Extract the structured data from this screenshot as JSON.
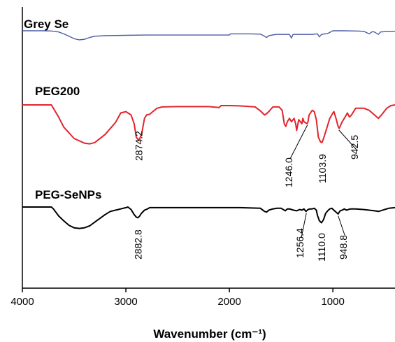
{
  "chart_data": {
    "type": "line",
    "xlabel": "Wavenumber (cm⁻¹)",
    "xlim": [
      4000,
      400
    ],
    "x_ticks": [
      4000,
      3000,
      2000,
      1000
    ],
    "x_tick_labels": [
      "4000",
      "3000",
      "2000",
      "1000"
    ],
    "colors": {
      "Grey Se": "#4a5ca6",
      "PEG200": "#e3242b",
      "PEG-SeNPs": "#000000"
    },
    "series": [
      {
        "name": "Grey Se",
        "offset": 0.0,
        "points": [
          [
            4000,
            0.0
          ],
          [
            3800,
            0.0
          ],
          [
            3720,
            0.3
          ],
          [
            3650,
            2.0
          ],
          [
            3600,
            5.0
          ],
          [
            3550,
            9.0
          ],
          [
            3500,
            13.0
          ],
          [
            3450,
            15.0
          ],
          [
            3400,
            14.0
          ],
          [
            3350,
            11.0
          ],
          [
            3300,
            9.0
          ],
          [
            3200,
            8.0
          ],
          [
            3000,
            7.5
          ],
          [
            2800,
            7.0
          ],
          [
            2500,
            7.0
          ],
          [
            2000,
            7.0
          ],
          [
            1990,
            5.0
          ],
          [
            1800,
            5.0
          ],
          [
            1700,
            5.5
          ],
          [
            1660,
            9.0
          ],
          [
            1640,
            11.0
          ],
          [
            1620,
            8.0
          ],
          [
            1550,
            6.0
          ],
          [
            1420,
            6.0
          ],
          [
            1400,
            12.0
          ],
          [
            1385,
            6.0
          ],
          [
            1200,
            6.0
          ],
          [
            1150,
            5.0
          ],
          [
            1130,
            10.0
          ],
          [
            1110,
            6.0
          ],
          [
            1050,
            4.5
          ],
          [
            1000,
            0.0
          ],
          [
            900,
            0.0
          ],
          [
            750,
            0.5
          ],
          [
            700,
            1.0
          ],
          [
            650,
            5.0
          ],
          [
            620,
            1.5
          ],
          [
            600,
            2.0
          ],
          [
            560,
            6.0
          ],
          [
            540,
            2.0
          ],
          [
            500,
            1.5
          ],
          [
            400,
            1.0
          ]
        ]
      },
      {
        "name": "PEG200",
        "offset": 0.0,
        "points": [
          [
            4000,
            0.0
          ],
          [
            3720,
            0.0
          ],
          [
            3700,
            5.0
          ],
          [
            3650,
            18.0
          ],
          [
            3600,
            33.0
          ],
          [
            3500,
            50.0
          ],
          [
            3400,
            57.0
          ],
          [
            3350,
            58.0
          ],
          [
            3300,
            56.0
          ],
          [
            3200,
            44.0
          ],
          [
            3100,
            26.0
          ],
          [
            3050,
            12.0
          ],
          [
            3000,
            10.0
          ],
          [
            2950,
            15.0
          ],
          [
            2920,
            28.0
          ],
          [
            2900,
            48.0
          ],
          [
            2880,
            52.0
          ],
          [
            2870,
            51.0
          ],
          [
            2850,
            45.0
          ],
          [
            2820,
            20.0
          ],
          [
            2800,
            15.0
          ],
          [
            2770,
            14.0
          ],
          [
            2740,
            10.0
          ],
          [
            2700,
            5.0
          ],
          [
            2650,
            3.0
          ],
          [
            2500,
            2.5
          ],
          [
            2200,
            2.5
          ],
          [
            2100,
            4.0
          ],
          [
            2080,
            1.0
          ],
          [
            2000,
            1.0
          ],
          [
            1900,
            1.5
          ],
          [
            1750,
            3.0
          ],
          [
            1700,
            9.0
          ],
          [
            1660,
            15.0
          ],
          [
            1640,
            13.0
          ],
          [
            1620,
            10.0
          ],
          [
            1580,
            3.0
          ],
          [
            1520,
            3.0
          ],
          [
            1490,
            8.0
          ],
          [
            1470,
            28.0
          ],
          [
            1455,
            32.0
          ],
          [
            1440,
            25.0
          ],
          [
            1420,
            20.0
          ],
          [
            1400,
            25.0
          ],
          [
            1375,
            20.0
          ],
          [
            1360,
            28.0
          ],
          [
            1350,
            38.0
          ],
          [
            1340,
            30.0
          ],
          [
            1330,
            22.0
          ],
          [
            1300,
            28.0
          ],
          [
            1290,
            20.0
          ],
          [
            1280,
            25.0
          ],
          [
            1250,
            28.0
          ],
          [
            1240,
            25.0
          ],
          [
            1230,
            15.0
          ],
          [
            1200,
            8.0
          ],
          [
            1180,
            10.0
          ],
          [
            1160,
            22.0
          ],
          [
            1140,
            48.0
          ],
          [
            1120,
            55.0
          ],
          [
            1105,
            56.0
          ],
          [
            1090,
            50.0
          ],
          [
            1070,
            40.0
          ],
          [
            1050,
            30.0
          ],
          [
            1030,
            20.0
          ],
          [
            1000,
            12.0
          ],
          [
            990,
            10.0
          ],
          [
            970,
            20.0
          ],
          [
            950,
            32.0
          ],
          [
            940,
            35.0
          ],
          [
            930,
            32.0
          ],
          [
            910,
            25.0
          ],
          [
            890,
            20.0
          ],
          [
            860,
            12.0
          ],
          [
            840,
            18.0
          ],
          [
            820,
            15.0
          ],
          [
            780,
            5.0
          ],
          [
            700,
            5.0
          ],
          [
            650,
            8.0
          ],
          [
            560,
            20.0
          ],
          [
            520,
            13.0
          ],
          [
            480,
            5.0
          ],
          [
            440,
            1.0
          ],
          [
            400,
            0.0
          ]
        ]
      },
      {
        "name": "PEG-SeNPs",
        "offset": 0.0,
        "points": [
          [
            4000,
            0.0
          ],
          [
            3720,
            0.0
          ],
          [
            3700,
            3.0
          ],
          [
            3650,
            14.0
          ],
          [
            3600,
            22.0
          ],
          [
            3550,
            29.0
          ],
          [
            3500,
            33.0
          ],
          [
            3450,
            34.0
          ],
          [
            3400,
            33.0
          ],
          [
            3350,
            30.0
          ],
          [
            3300,
            24.0
          ],
          [
            3250,
            18.0
          ],
          [
            3200,
            12.0
          ],
          [
            3150,
            7.0
          ],
          [
            3100,
            5.0
          ],
          [
            3050,
            3.0
          ],
          [
            3000,
            1.0
          ],
          [
            2980,
            0.0
          ],
          [
            2950,
            4.0
          ],
          [
            2920,
            12.0
          ],
          [
            2900,
            16.0
          ],
          [
            2885,
            17.0
          ],
          [
            2870,
            15.0
          ],
          [
            2850,
            10.0
          ],
          [
            2820,
            5.0
          ],
          [
            2790,
            3.0
          ],
          [
            2770,
            1.0
          ],
          [
            2700,
            1.0
          ],
          [
            2500,
            1.0
          ],
          [
            2000,
            1.0
          ],
          [
            1900,
            1.0
          ],
          [
            1700,
            2.0
          ],
          [
            1660,
            7.0
          ],
          [
            1640,
            8.0
          ],
          [
            1620,
            5.0
          ],
          [
            1580,
            3.0
          ],
          [
            1540,
            2.0
          ],
          [
            1500,
            2.0
          ],
          [
            1460,
            6.0
          ],
          [
            1440,
            3.0
          ],
          [
            1420,
            3.0
          ],
          [
            1380,
            5.0
          ],
          [
            1350,
            6.0
          ],
          [
            1320,
            4.0
          ],
          [
            1300,
            5.0
          ],
          [
            1280,
            3.0
          ],
          [
            1260,
            7.0
          ],
          [
            1240,
            4.0
          ],
          [
            1220,
            3.0
          ],
          [
            1200,
            3.0
          ],
          [
            1180,
            2.0
          ],
          [
            1160,
            5.0
          ],
          [
            1150,
            13.0
          ],
          [
            1130,
            22.0
          ],
          [
            1110,
            25.0
          ],
          [
            1090,
            20.0
          ],
          [
            1070,
            10.0
          ],
          [
            1050,
            6.0
          ],
          [
            1030,
            3.0
          ],
          [
            1010,
            2.0
          ],
          [
            990,
            5.0
          ],
          [
            970,
            8.0
          ],
          [
            950,
            11.0
          ],
          [
            930,
            6.0
          ],
          [
            910,
            5.0
          ],
          [
            890,
            3.0
          ],
          [
            870,
            5.0
          ],
          [
            850,
            4.0
          ],
          [
            830,
            3.0
          ],
          [
            780,
            3.0
          ],
          [
            700,
            4.0
          ],
          [
            650,
            5.0
          ],
          [
            600,
            6.0
          ],
          [
            560,
            7.0
          ],
          [
            540,
            6.0
          ],
          [
            500,
            4.0
          ],
          [
            460,
            2.0
          ],
          [
            400,
            1.0
          ]
        ]
      }
    ],
    "annotations": [
      {
        "series": "PEG200",
        "wavenumber": 2874.2,
        "label": "2874.2"
      },
      {
        "series": "PEG200",
        "wavenumber": 1246.0,
        "label": "1246.0"
      },
      {
        "series": "PEG200",
        "wavenumber": 1103.9,
        "label": "1103.9"
      },
      {
        "series": "PEG200",
        "wavenumber": 942.5,
        "label": "942.5"
      },
      {
        "series": "PEG-SeNPs",
        "wavenumber": 2882.8,
        "label": "2882.8"
      },
      {
        "series": "PEG-SeNPs",
        "wavenumber": 1256.4,
        "label": "1256.4"
      },
      {
        "series": "PEG-SeNPs",
        "wavenumber": 1110.0,
        "label": "1110.0"
      },
      {
        "series": "PEG-SeNPs",
        "wavenumber": 948.8,
        "label": "948.8"
      }
    ]
  }
}
